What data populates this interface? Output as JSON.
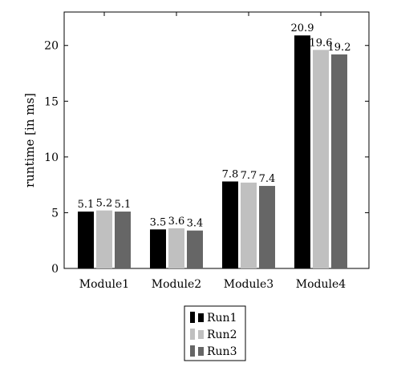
{
  "chart_data": {
    "type": "bar",
    "categories": [
      "Module1",
      "Module2",
      "Module3",
      "Module4"
    ],
    "series": [
      {
        "name": "Run1",
        "values": [
          5.1,
          3.5,
          7.8,
          20.9
        ],
        "labels": [
          "5.1",
          "3.5",
          "7.8",
          "20.9"
        ],
        "color": "#000000"
      },
      {
        "name": "Run2",
        "values": [
          5.2,
          3.6,
          7.7,
          19.6
        ],
        "labels": [
          "5.2",
          "3.6",
          "7.7",
          "19.6"
        ],
        "color": "#c0c0c0"
      },
      {
        "name": "Run3",
        "values": [
          5.1,
          3.4,
          7.4,
          19.2
        ],
        "labels": [
          "5.1",
          "3.4",
          "7.4",
          "19.2"
        ],
        "color": "#666666"
      }
    ],
    "title": "",
    "xlabel": "",
    "ylabel": "runtime [in ms]",
    "ylim": [
      0,
      23
    ],
    "yticks": [
      0,
      5,
      10,
      15,
      20
    ],
    "ytick_labels": [
      "0",
      "5",
      "10",
      "15",
      "20"
    ],
    "grid": false,
    "legend_position": "bottom-center"
  }
}
